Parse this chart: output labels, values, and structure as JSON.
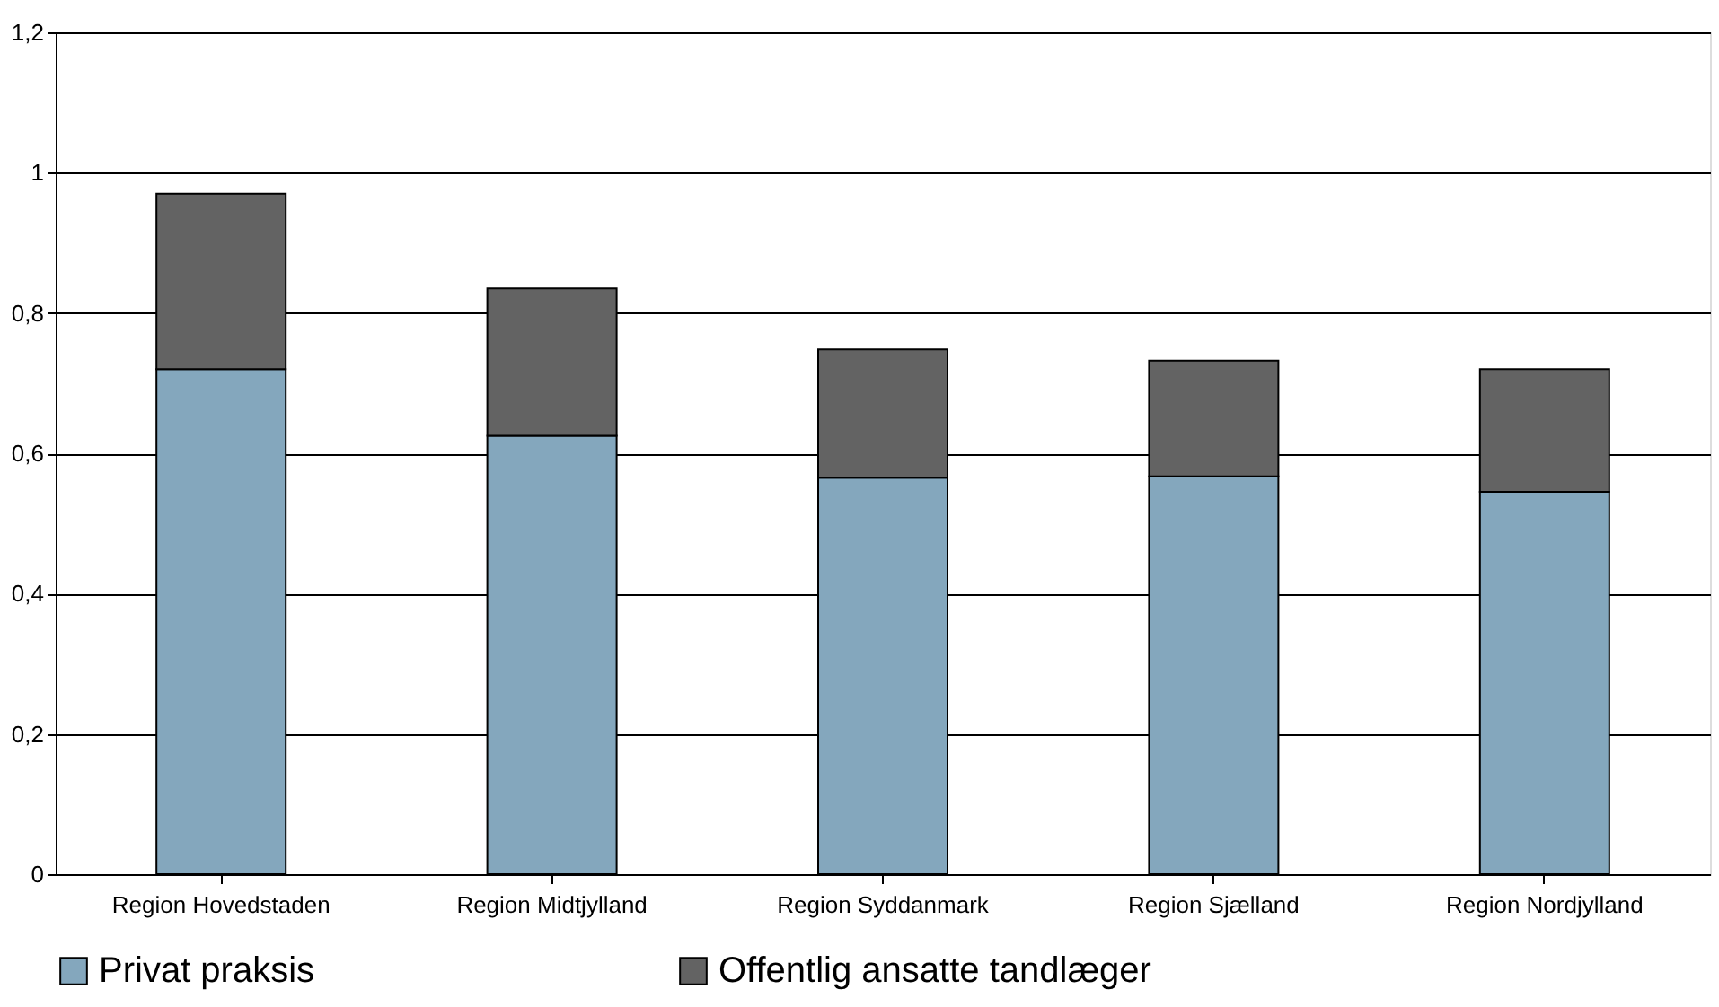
{
  "chart_data": {
    "type": "bar",
    "stacked": true,
    "categories": [
      "Region Hovedstaden",
      "Region Midtjylland",
      "Region Syddanmark",
      "Region Sjælland",
      "Region Nordjylland"
    ],
    "series": [
      {
        "name": "Privat praksis",
        "color": "#84a7bd",
        "values": [
          0.72,
          0.625,
          0.565,
          0.567,
          0.545
        ]
      },
      {
        "name": "Offentlig ansatte tandlæger",
        "color": "#636363",
        "values": [
          0.25,
          0.21,
          0.183,
          0.165,
          0.175
        ]
      }
    ],
    "ylim": [
      0,
      1.2
    ],
    "yticks": [
      0,
      {
        "value": 0.2,
        "label": "0,2"
      },
      {
        "value": 0.4,
        "label": "0,4"
      },
      {
        "value": 0.6,
        "label": "0,6"
      },
      {
        "value": 0.8,
        "label": "0,8"
      },
      1,
      {
        "value": 1.2,
        "label": "1,2"
      }
    ],
    "grid": "y",
    "legend": "bottom"
  }
}
